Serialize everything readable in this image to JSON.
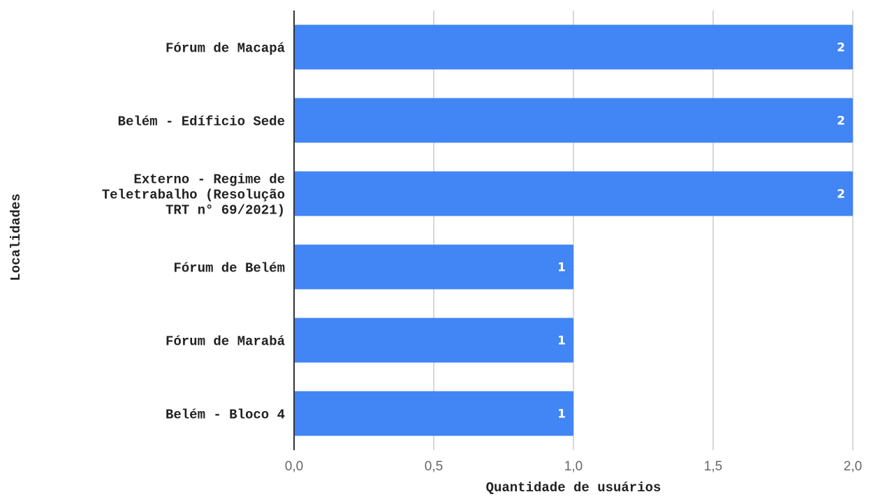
{
  "chart_data": {
    "type": "bar",
    "orientation": "horizontal",
    "title": "",
    "xlabel": "Quantidade de usuários",
    "ylabel": "Localidades",
    "categories": [
      [
        "Fórum de Macapá"
      ],
      [
        "Belém - Edíficio Sede"
      ],
      [
        "Externo - Regime de",
        "Teletrabalho (Resolução",
        "TRT n° 69/2021)"
      ],
      [
        "Fórum de Belém"
      ],
      [
        "Fórum de Marabá"
      ],
      [
        "Belém - Bloco 4"
      ]
    ],
    "values": [
      2,
      2,
      2,
      1,
      1,
      1
    ],
    "data_labels": [
      "2",
      "2",
      "2",
      "1",
      "1",
      "1"
    ],
    "xlim": [
      0,
      2
    ],
    "xticks": [
      0,
      0.5,
      1,
      1.5,
      2
    ],
    "xtick_labels": [
      "0,0",
      "0,5",
      "1,0",
      "1,5",
      "2,0"
    ],
    "grid": true,
    "legend": "none",
    "bar_color": "#4285f4",
    "grid_color": "#cccccc",
    "axis_color": "#333333"
  }
}
